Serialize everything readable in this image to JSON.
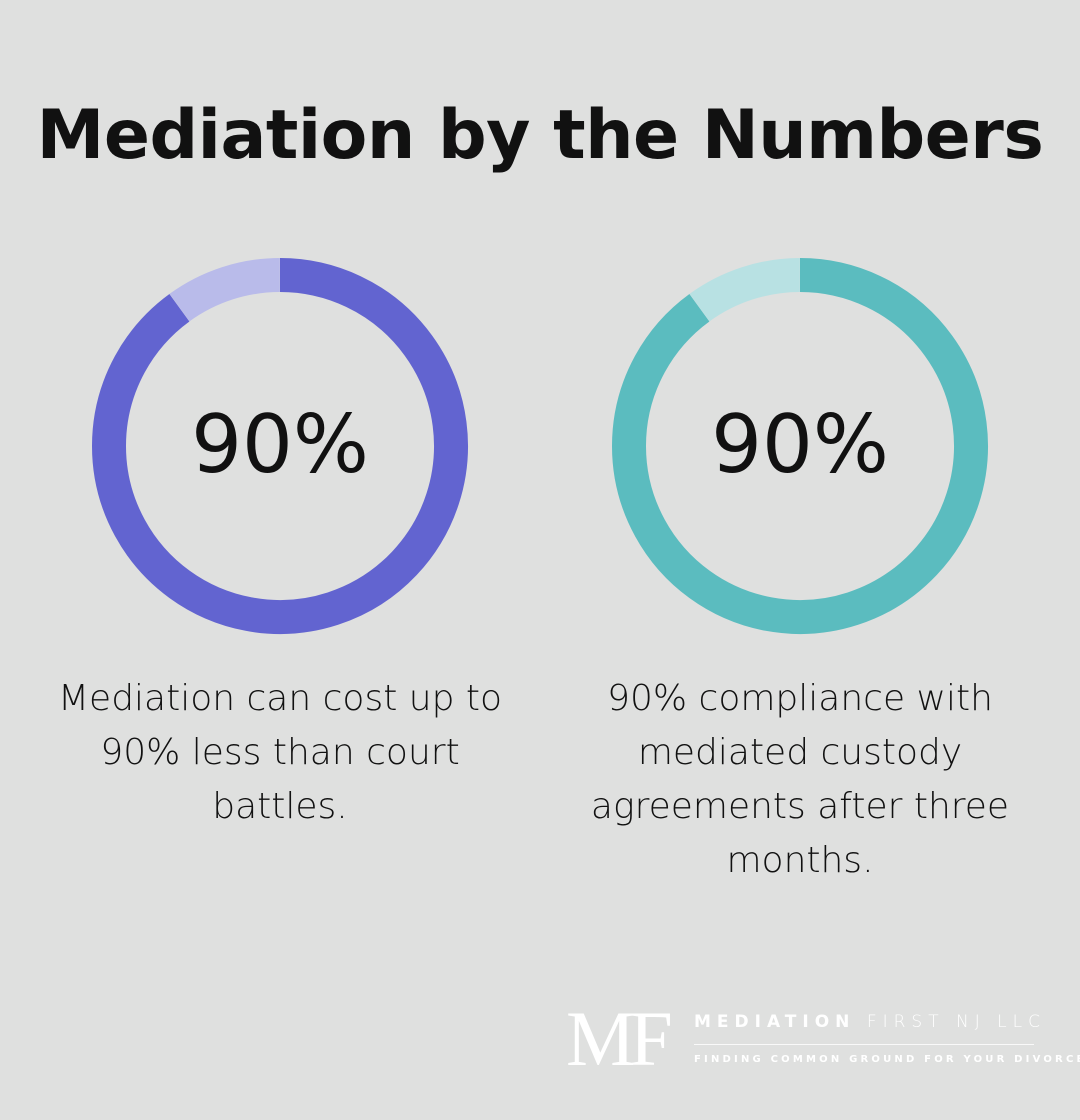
{
  "title": "Mediation by the Numbers",
  "chart_data": [
    {
      "type": "pie",
      "variant": "donut",
      "value": 90,
      "max": 100,
      "label": "90%",
      "caption": "Mediation can cost up to 90% less than court battles.",
      "colors": {
        "fill": "#6264d0",
        "rest": "#b9bbea"
      }
    },
    {
      "type": "pie",
      "variant": "donut",
      "value": 90,
      "max": 100,
      "label": "90%",
      "caption": "90% compliance with mediated custody agreements after three months.",
      "colors": {
        "fill": "#5bbcbf",
        "rest": "#b8e1e3"
      }
    }
  ],
  "logo": {
    "mark": "MF",
    "name_bold": "MEDIATION",
    "name_light": "FIRST NJ LLC",
    "tagline": "FINDING COMMON GROUND FOR YOUR DIVORCE"
  }
}
